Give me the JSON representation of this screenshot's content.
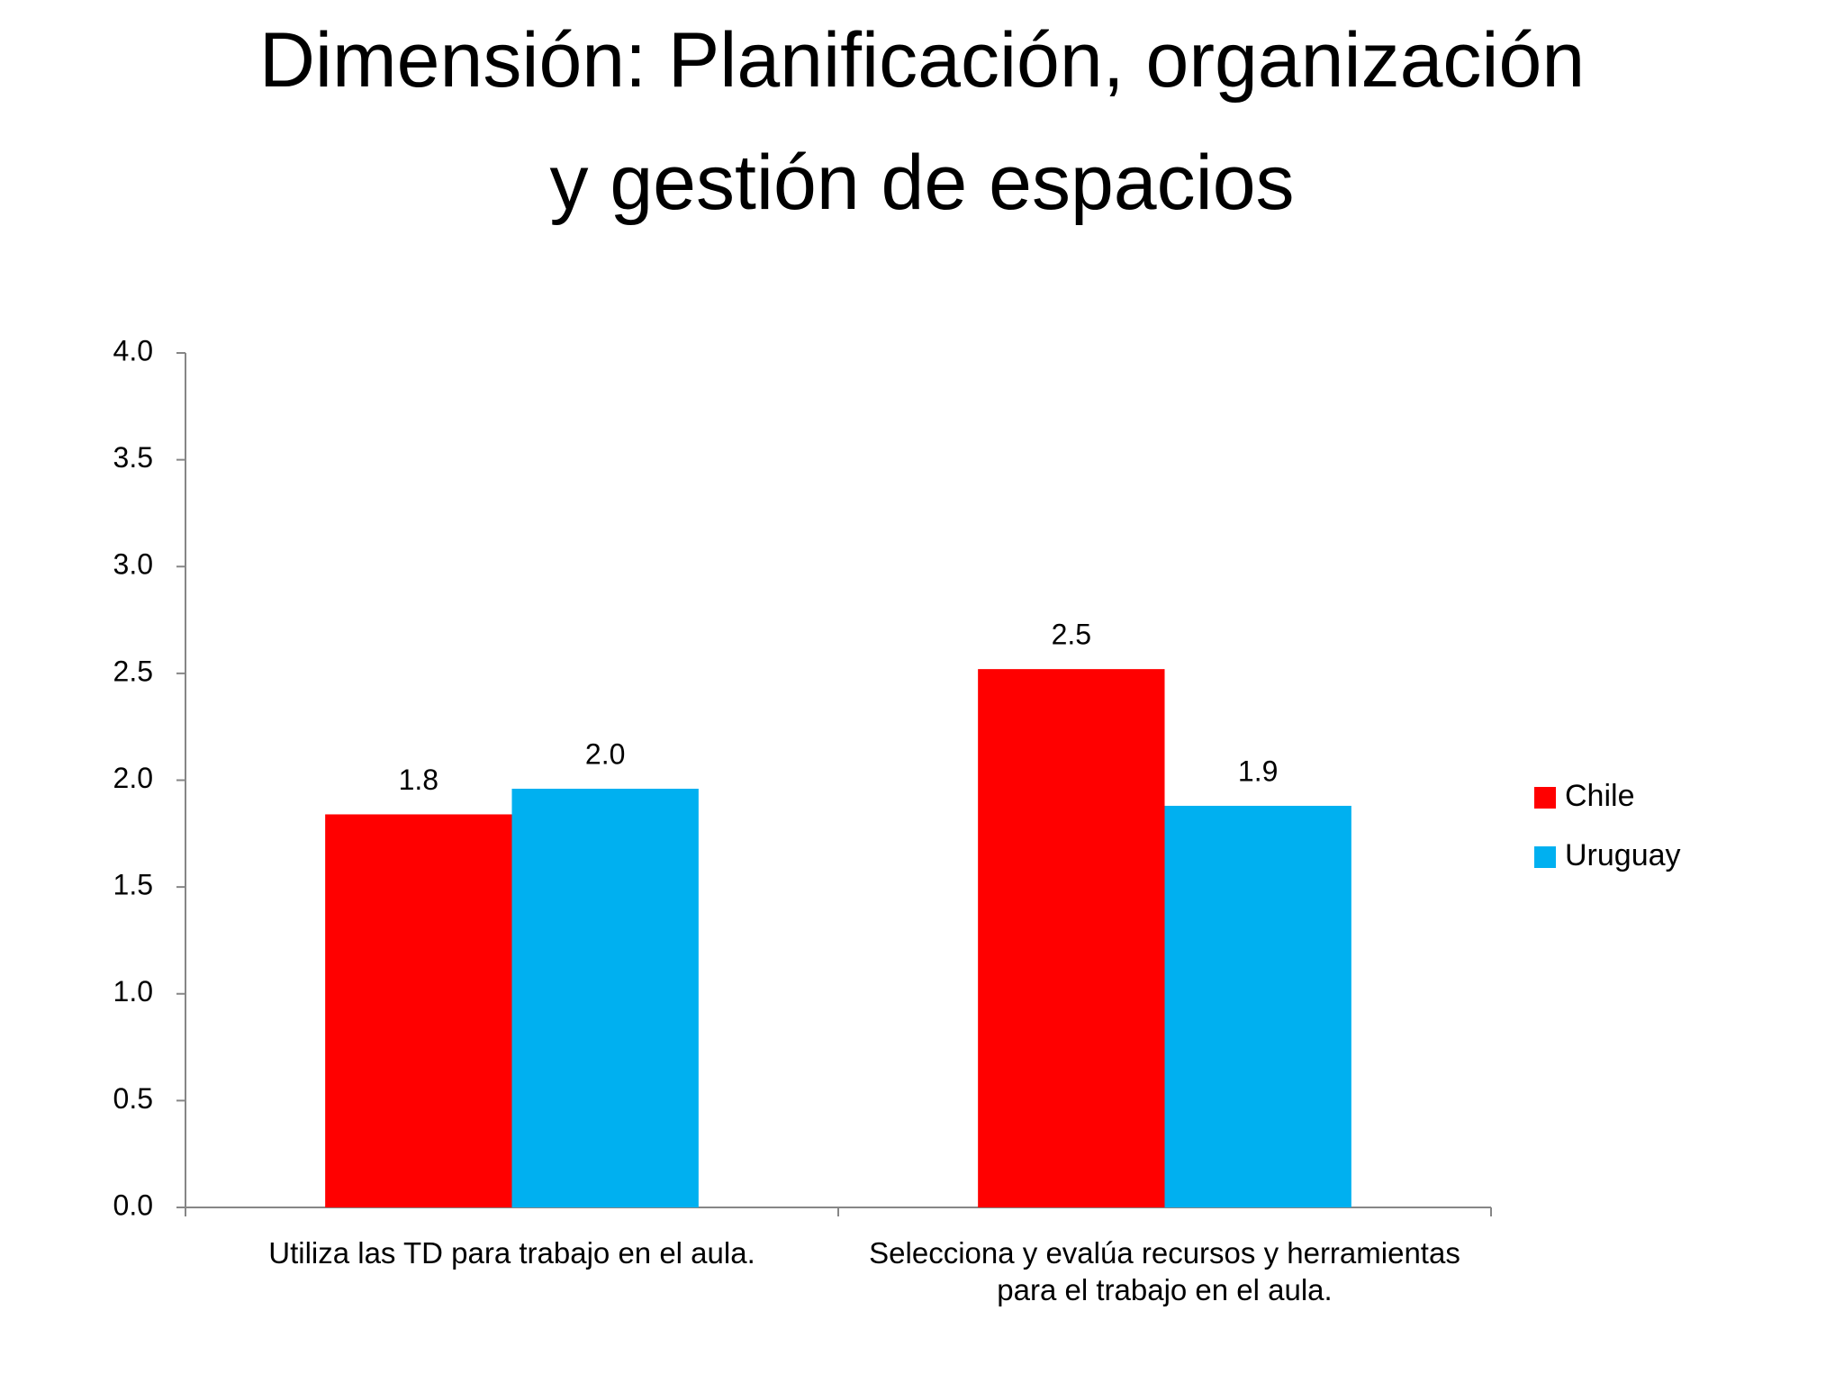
{
  "chart_data": {
    "type": "bar",
    "title": [
      "Dimensión: Planificación, organización",
      "y gestión de espacios"
    ],
    "categories": [
      "Utiliza las TD para trabajo en el aula.",
      "Selecciona y evalúa recursos y herramientas para el trabajo en el aula."
    ],
    "series": [
      {
        "name": "Chile",
        "color": "#ff0000",
        "values": [
          1.84,
          2.52
        ],
        "value_labels": [
          "1.8",
          "2.5"
        ]
      },
      {
        "name": "Uruguay",
        "color": "#00b0f0",
        "values": [
          1.96,
          1.88
        ],
        "value_labels": [
          "2.0",
          "1.9"
        ]
      }
    ],
    "ylim": [
      0,
      4
    ],
    "yticks": [
      {
        "value": 0,
        "label": "0.0"
      },
      {
        "value": 0.5,
        "label": "0.5"
      },
      {
        "value": 1,
        "label": "1.0"
      },
      {
        "value": 1.5,
        "label": "1.5"
      },
      {
        "value": 2,
        "label": "2.0"
      },
      {
        "value": 2.5,
        "label": "2.5"
      },
      {
        "value": 3,
        "label": "3.0"
      },
      {
        "value": 3.5,
        "label": "3.5"
      },
      {
        "value": 4,
        "label": "4.0"
      }
    ],
    "grid": false,
    "legend": "right"
  }
}
